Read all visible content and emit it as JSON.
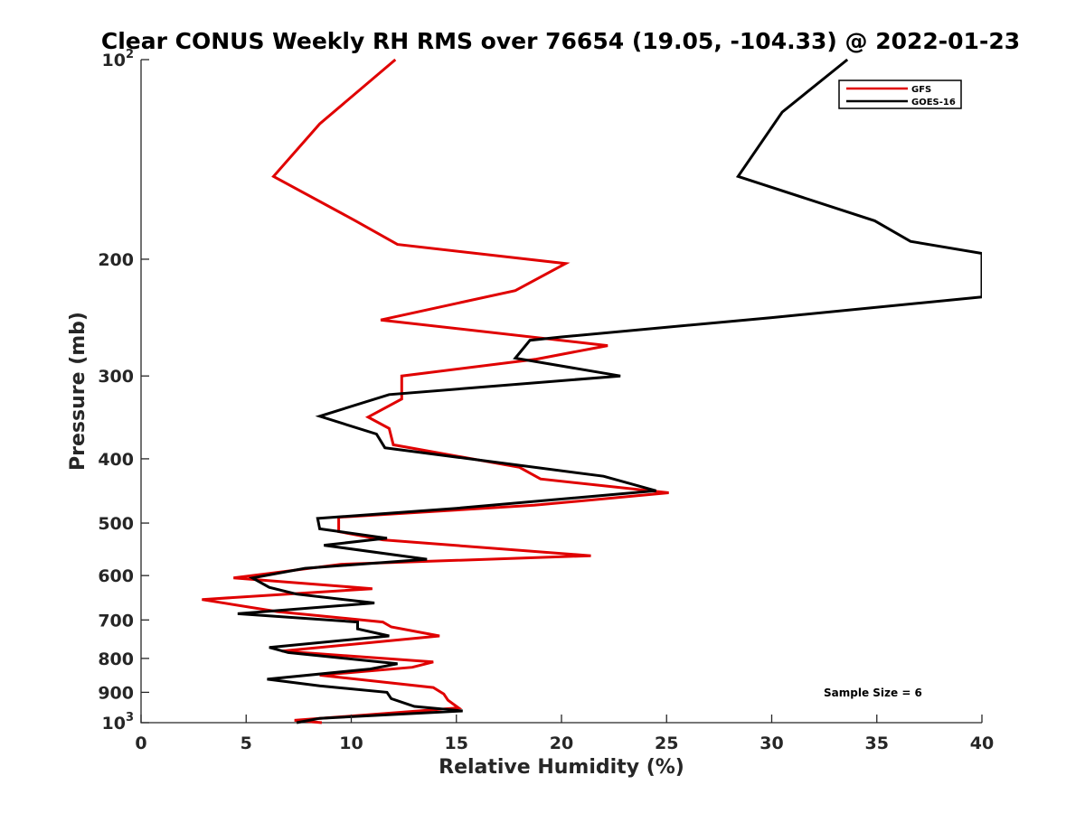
{
  "chart_data": {
    "type": "line",
    "title": "Clear CONUS Weekly RH RMS over 76654 (19.05, -104.33) @ 2022-01-23",
    "xlabel": "Relative Humidity (%)",
    "ylabel": "Pressure (mb)",
    "xlim": [
      0,
      40
    ],
    "ylim": [
      100,
      1000
    ],
    "yscale": "log",
    "y_reversed": true,
    "xticks": [
      0,
      5,
      10,
      15,
      20,
      25,
      30,
      35,
      40
    ],
    "xtick_labels": [
      "0",
      "5",
      "10",
      "15",
      "20",
      "25",
      "30",
      "35",
      "40"
    ],
    "yticks": [
      {
        "value": 100,
        "base": "10",
        "exp": "2"
      },
      {
        "value": 200,
        "label": "200"
      },
      {
        "value": 300,
        "label": "300"
      },
      {
        "value": 400,
        "label": "400"
      },
      {
        "value": 500,
        "label": "500"
      },
      {
        "value": 600,
        "label": "600"
      },
      {
        "value": 700,
        "label": "700"
      },
      {
        "value": 800,
        "label": "800"
      },
      {
        "value": 900,
        "label": "900"
      },
      {
        "value": 1000,
        "base": "10",
        "exp": "3"
      }
    ],
    "legend_position": "top-right",
    "annotation": "Sample Size = 6",
    "series": [
      {
        "name": "GFS",
        "color": "#e00000",
        "points": [
          [
            12.1,
            100
          ],
          [
            8.5,
            125
          ],
          [
            6.3,
            150
          ],
          [
            10.2,
            175
          ],
          [
            12.2,
            190
          ],
          [
            20.2,
            203
          ],
          [
            17.8,
            223
          ],
          [
            11.4,
            247
          ],
          [
            22.2,
            270
          ],
          [
            18.8,
            283
          ],
          [
            12.4,
            300
          ],
          [
            12.4,
            325
          ],
          [
            10.8,
            346
          ],
          [
            11.8,
            360
          ],
          [
            12.0,
            381
          ],
          [
            18.0,
            412
          ],
          [
            19.0,
            429
          ],
          [
            25.1,
            450
          ],
          [
            18.7,
            470
          ],
          [
            9.4,
            490
          ],
          [
            9.4,
            515
          ],
          [
            11.5,
            530
          ],
          [
            21.4,
            560
          ],
          [
            9.5,
            577
          ],
          [
            4.4,
            605
          ],
          [
            11.0,
            628
          ],
          [
            2.9,
            652
          ],
          [
            6.5,
            680
          ],
          [
            11.5,
            705
          ],
          [
            11.9,
            717
          ],
          [
            14.2,
            740
          ],
          [
            6.7,
            780
          ],
          [
            13.9,
            810
          ],
          [
            12.9,
            825
          ],
          [
            8.5,
            848
          ],
          [
            13.9,
            885
          ],
          [
            14.4,
            905
          ],
          [
            14.6,
            925
          ],
          [
            15.1,
            950
          ],
          [
            7.3,
            992
          ],
          [
            8.6,
            1000
          ]
        ]
      },
      {
        "name": "GOES-16",
        "color": "#000000",
        "points": [
          [
            33.6,
            100
          ],
          [
            30.5,
            120
          ],
          [
            28.4,
            150
          ],
          [
            34.9,
            175
          ],
          [
            36.6,
            188
          ],
          [
            40.0,
            196
          ],
          [
            40.0,
            228
          ],
          [
            30.0,
            245
          ],
          [
            20.0,
            262
          ],
          [
            18.5,
            265
          ],
          [
            17.8,
            282
          ],
          [
            22.8,
            300
          ],
          [
            11.8,
            320
          ],
          [
            8.5,
            345
          ],
          [
            11.2,
            367
          ],
          [
            11.6,
            385
          ],
          [
            22.0,
            425
          ],
          [
            24.5,
            447
          ],
          [
            15.0,
            475
          ],
          [
            8.4,
            492
          ],
          [
            8.5,
            510
          ],
          [
            11.7,
            527
          ],
          [
            8.7,
            540
          ],
          [
            13.6,
            567
          ],
          [
            7.8,
            585
          ],
          [
            5.3,
            605
          ],
          [
            6.1,
            625
          ],
          [
            7.4,
            640
          ],
          [
            11.1,
            660
          ],
          [
            4.6,
            685
          ],
          [
            10.3,
            705
          ],
          [
            10.3,
            722
          ],
          [
            11.8,
            740
          ],
          [
            6.1,
            770
          ],
          [
            7.0,
            784
          ],
          [
            12.2,
            815
          ],
          [
            10.9,
            830
          ],
          [
            6.0,
            860
          ],
          [
            8.5,
            880
          ],
          [
            11.7,
            900
          ],
          [
            11.9,
            920
          ],
          [
            13.0,
            945
          ],
          [
            15.3,
            960
          ],
          [
            8.5,
            985
          ],
          [
            7.4,
            1000
          ]
        ]
      }
    ]
  }
}
